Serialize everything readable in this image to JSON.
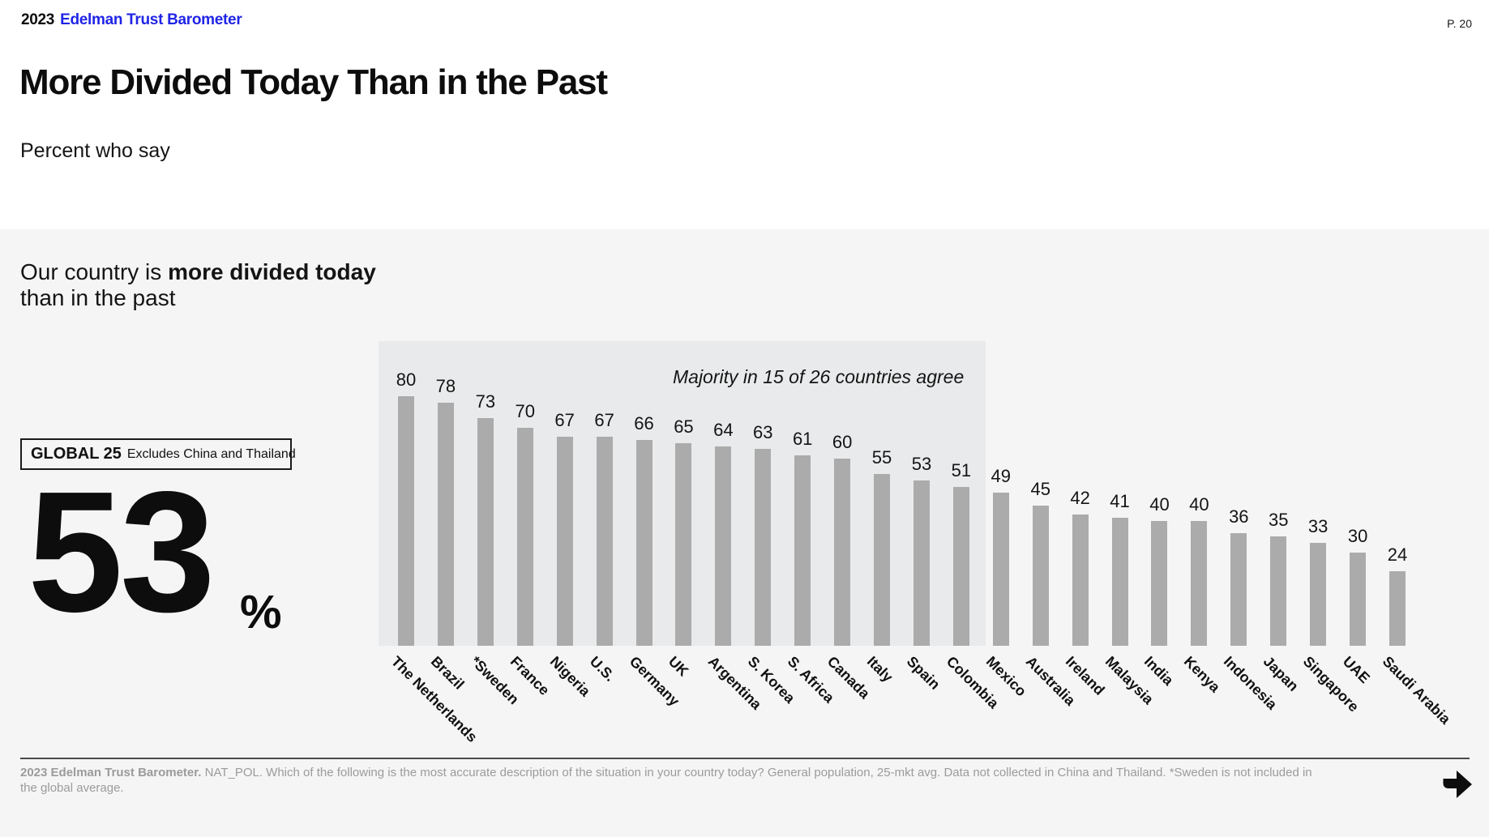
{
  "header": {
    "year": "2023",
    "brand": "Edelman Trust Barometer",
    "page_number": "P. 20"
  },
  "title": "More Divided Today Than in the Past",
  "subtitle": "Percent who say",
  "statement": {
    "lead": "Our country is ",
    "emphasis": "more divided today",
    "tail": "than in the past"
  },
  "global_average": {
    "label": "GLOBAL 25",
    "note": "Excludes China and Thailand",
    "value": "53",
    "unit": "%"
  },
  "chart_data": {
    "type": "bar",
    "categories": [
      "The Netherlands",
      "Brazil",
      "*Sweden",
      "France",
      "Nigeria",
      "U.S.",
      "Germany",
      "UK",
      "Argentina",
      "S. Korea",
      "S. Africa",
      "Canada",
      "Italy",
      "Spain",
      "Colombia",
      "Mexico",
      "Australia",
      "Ireland",
      "Malaysia",
      "India",
      "Kenya",
      "Indonesia",
      "Japan",
      "Singapore",
      "UAE",
      "Saudi Arabia"
    ],
    "values": [
      80,
      78,
      73,
      70,
      67,
      67,
      66,
      65,
      64,
      63,
      61,
      60,
      55,
      53,
      51,
      49,
      45,
      42,
      41,
      40,
      40,
      36,
      35,
      33,
      30,
      24
    ],
    "annotation": "Majority in 15 of 26 countries agree",
    "highlighted_count": 15,
    "ylim": [
      0,
      100
    ],
    "grid": false,
    "legend": false,
    "bar_color": "#ababab",
    "highlight_bg": "#e9eaeb"
  },
  "footnote": {
    "bold": "2023 Edelman Trust Barometer.",
    "text": " NAT_POL. Which of the following is the most accurate description of the situation in your country today? General population, 25-mkt avg. Data not collected in China and Thailand. *Sweden is not included in the global average."
  },
  "icons": {
    "pagination_next": "arrow-right-icon"
  }
}
